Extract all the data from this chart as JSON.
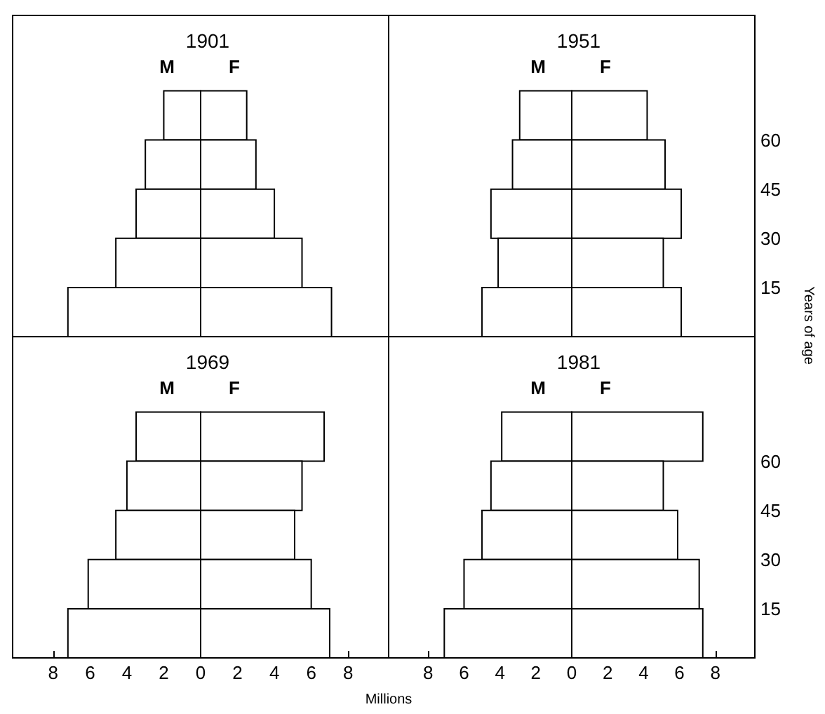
{
  "chart_data": [
    {
      "type": "bar",
      "title": "1901",
      "orientation": "horizontal",
      "stacked": true,
      "x": [
        67.5,
        52.5,
        37.5,
        22.5,
        7.5
      ],
      "series": [
        {
          "name": "M",
          "color": "#ffffff",
          "values": [
            -2.0,
            -3.0,
            -3.5,
            -4.6,
            -7.2
          ]
        },
        {
          "name": "F",
          "color": "#ffffff",
          "values": [
            2.5,
            3.0,
            4.0,
            5.5,
            7.1
          ]
        }
      ],
      "xlim": [
        -10.2,
        10.2
      ],
      "ylim": [
        0,
        98
      ],
      "yticks": [
        15,
        30,
        45,
        60
      ],
      "tick_labels": false
    },
    {
      "type": "bar",
      "title": "1951",
      "orientation": "horizontal",
      "stacked": true,
      "x": [
        67.5,
        52.5,
        37.5,
        22.5,
        7.5
      ],
      "series": [
        {
          "name": "M",
          "color": "#ffffff",
          "values": [
            -2.9,
            -3.3,
            -4.5,
            -4.1,
            -5.0
          ]
        },
        {
          "name": "F",
          "color": "#ffffff",
          "values": [
            4.2,
            5.2,
            6.1,
            5.1,
            6.1
          ]
        }
      ],
      "xlim": [
        -10.2,
        10.2
      ],
      "ylim": [
        0,
        98
      ],
      "yticks": [
        15,
        30,
        45,
        60
      ],
      "tick_labels": "y",
      "ylabel": "Years of age"
    },
    {
      "type": "bar",
      "title": "1969",
      "orientation": "horizontal",
      "stacked": true,
      "x": [
        67.5,
        52.5,
        37.5,
        22.5,
        7.5
      ],
      "series": [
        {
          "name": "M",
          "color": "#ffffff",
          "values": [
            -3.5,
            -4.0,
            -4.6,
            -6.1,
            -7.2
          ]
        },
        {
          "name": "F",
          "color": "#ffffff",
          "values": [
            6.7,
            5.5,
            5.1,
            6.0,
            7.0
          ]
        }
      ],
      "xlim": [
        -10.2,
        10.2
      ],
      "xticks": [
        {
          "value": -8,
          "label": "8"
        },
        {
          "value": -6,
          "label": "6"
        },
        {
          "value": -4,
          "label": "4"
        },
        {
          "value": -2,
          "label": "2"
        },
        0,
        2,
        4,
        6,
        8
      ],
      "ylim": [
        0,
        98
      ],
      "yticks": [
        15,
        30,
        45,
        60
      ],
      "tick_labels": "x",
      "xlabel": "Millions"
    },
    {
      "type": "bar",
      "title": "1981",
      "orientation": "horizontal",
      "stacked": true,
      "x": [
        67.5,
        52.5,
        37.5,
        22.5,
        7.5
      ],
      "series": [
        {
          "name": "M",
          "color": "#ffffff",
          "values": [
            -3.9,
            -4.5,
            -5.0,
            -6.0,
            -7.1
          ]
        },
        {
          "name": "F",
          "color": "#ffffff",
          "values": [
            7.3,
            5.1,
            5.9,
            7.1,
            7.3
          ]
        }
      ],
      "xlim": [
        -10.2,
        10.2
      ],
      "xticks": [
        {
          "value": -8,
          "label": "8"
        },
        {
          "value": -6,
          "label": "6"
        },
        {
          "value": -4,
          "label": "4"
        },
        {
          "value": -2,
          "label": "2"
        },
        0,
        2,
        4,
        6,
        8
      ],
      "ylim": [
        0,
        98
      ],
      "yticks": [
        15,
        30,
        45,
        60
      ]
    }
  ]
}
